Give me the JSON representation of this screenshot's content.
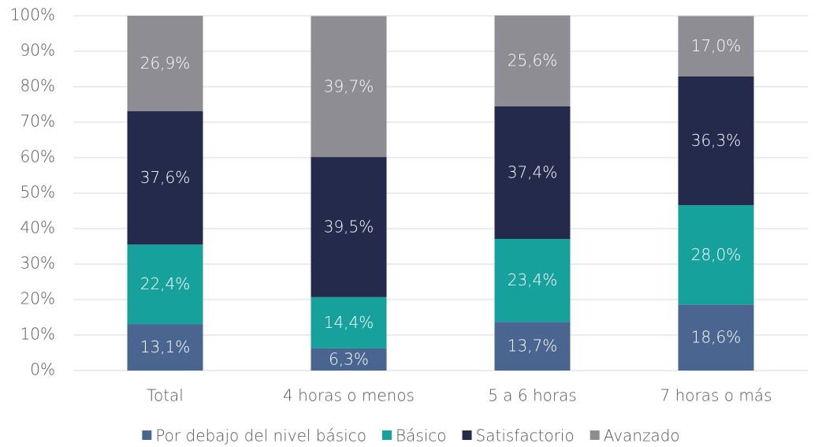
{
  "chart_data": {
    "type": "stacked_bar",
    "categories": [
      "Total",
      "4 horas o menos",
      "5 a 6 horas",
      "7 horas o más"
    ],
    "series": [
      {
        "name": "Por debajo del nivel básico",
        "color": "#4a6590",
        "values": [
          13.1,
          6.3,
          13.7,
          18.6
        ],
        "value_labels": [
          "13,1%",
          "6,3%",
          "13,7%",
          "18,6%"
        ]
      },
      {
        "name": "Básico",
        "color": "#17a19c",
        "values": [
          22.4,
          14.4,
          23.4,
          28.0
        ],
        "value_labels": [
          "22,4%",
          "14,4%",
          "23,4%",
          "28,0%"
        ]
      },
      {
        "name": "Satisfactorio",
        "color": "#232a4c",
        "values": [
          37.6,
          39.5,
          37.4,
          36.3
        ],
        "value_labels": [
          "37,6%",
          "39,5%",
          "37,4%",
          "36,3%"
        ]
      },
      {
        "name": "Avanzado",
        "color": "#8e8d93",
        "values": [
          26.9,
          39.7,
          25.6,
          17.0
        ],
        "value_labels": [
          "26,9%",
          "39,7%",
          "25,6%",
          "17,0%"
        ]
      }
    ],
    "ylim": [
      0,
      100
    ],
    "yticks": [
      {
        "value": 0,
        "label": "0%"
      },
      {
        "value": 10,
        "label": "10%"
      },
      {
        "value": 20,
        "label": "20%"
      },
      {
        "value": 30,
        "label": "30%"
      },
      {
        "value": 40,
        "label": "40%"
      },
      {
        "value": 50,
        "label": "50%"
      },
      {
        "value": 60,
        "label": "60%"
      },
      {
        "value": 70,
        "label": "70%"
      },
      {
        "value": 80,
        "label": "80%"
      },
      {
        "value": 90,
        "label": "90%"
      },
      {
        "value": 100,
        "label": "100%"
      }
    ],
    "grid": true,
    "legend": "bottom"
  }
}
